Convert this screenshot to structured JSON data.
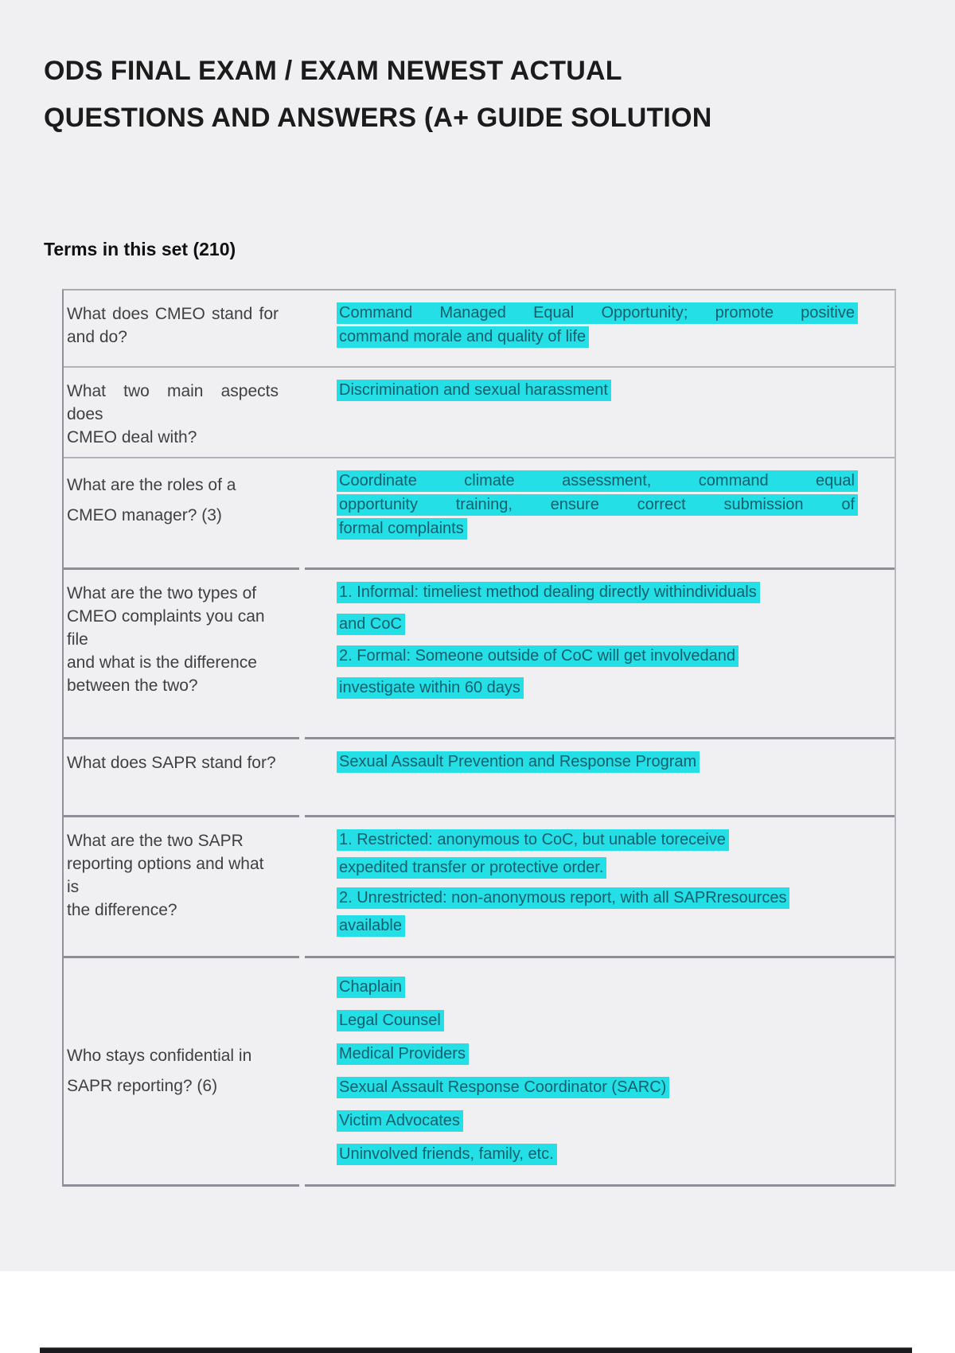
{
  "page": {
    "title_lines": [
      "ODS FINAL EXAM / EXAM NEWEST ACTUAL",
      "QUESTIONS AND ANSWERS (A+ GUIDE SOLUTION"
    ],
    "terms_heading": "Terms in this set (210)",
    "term_count": "210"
  },
  "colors": {
    "page_background": "#f0f0f2",
    "answer_highlight": "#25dfe6",
    "answer_text": "#135f6d",
    "question_text": "#404040",
    "bottom_bar": "#1b1b1f"
  },
  "terms": [
    {
      "question_lines": [
        "What does CMEO stand for",
        "and do?"
      ],
      "answer_lines": [
        "Command Managed Equal Opportunity; promote positive",
        "command morale and quality of life"
      ]
    },
    {
      "question_lines": [
        "What two main aspects does",
        "CMEO deal with?"
      ],
      "answer_lines": [
        "Discrimination and sexual harassment"
      ]
    },
    {
      "question_lines": [
        "What are the roles of a",
        "CMEO manager? (3)"
      ],
      "answer_lines": [
        "Coordinate climate assessment, command equal",
        "opportunity training, ensure correct submission of",
        "formal complaints"
      ]
    },
    {
      "question_lines": [
        "What are the two types of",
        "CMEO complaints you can file",
        "and what is the difference",
        "between the two?"
      ],
      "answer_lines": [
        "1. Informal: timeliest method dealing directly withindividuals",
        "and CoC",
        "2. Formal: Someone outside of CoC will get involvedand",
        "investigate within 60 days"
      ]
    },
    {
      "question_lines": [
        "What does SAPR stand for?"
      ],
      "answer_lines": [
        "Sexual Assault Prevention and Response Program"
      ]
    },
    {
      "question_lines": [
        "What are the two SAPR",
        "reporting options and what is",
        "the difference?"
      ],
      "answer_lines": [
        "1. Restricted: anonymous to CoC, but unable toreceive",
        "expedited transfer or protective order.",
        "2. Unrestricted: non-anonymous report, with all SAPRresources",
        "available"
      ]
    },
    {
      "question_lines": [
        "Who stays confidential in",
        "SAPR reporting? (6)"
      ],
      "answer_lines": [
        "Chaplain",
        "Legal Counsel",
        "Medical Providers",
        "Sexual Assault Response Coordinator (SARC)",
        "Victim Advocates",
        "Uninvolved friends, family, etc."
      ]
    }
  ]
}
